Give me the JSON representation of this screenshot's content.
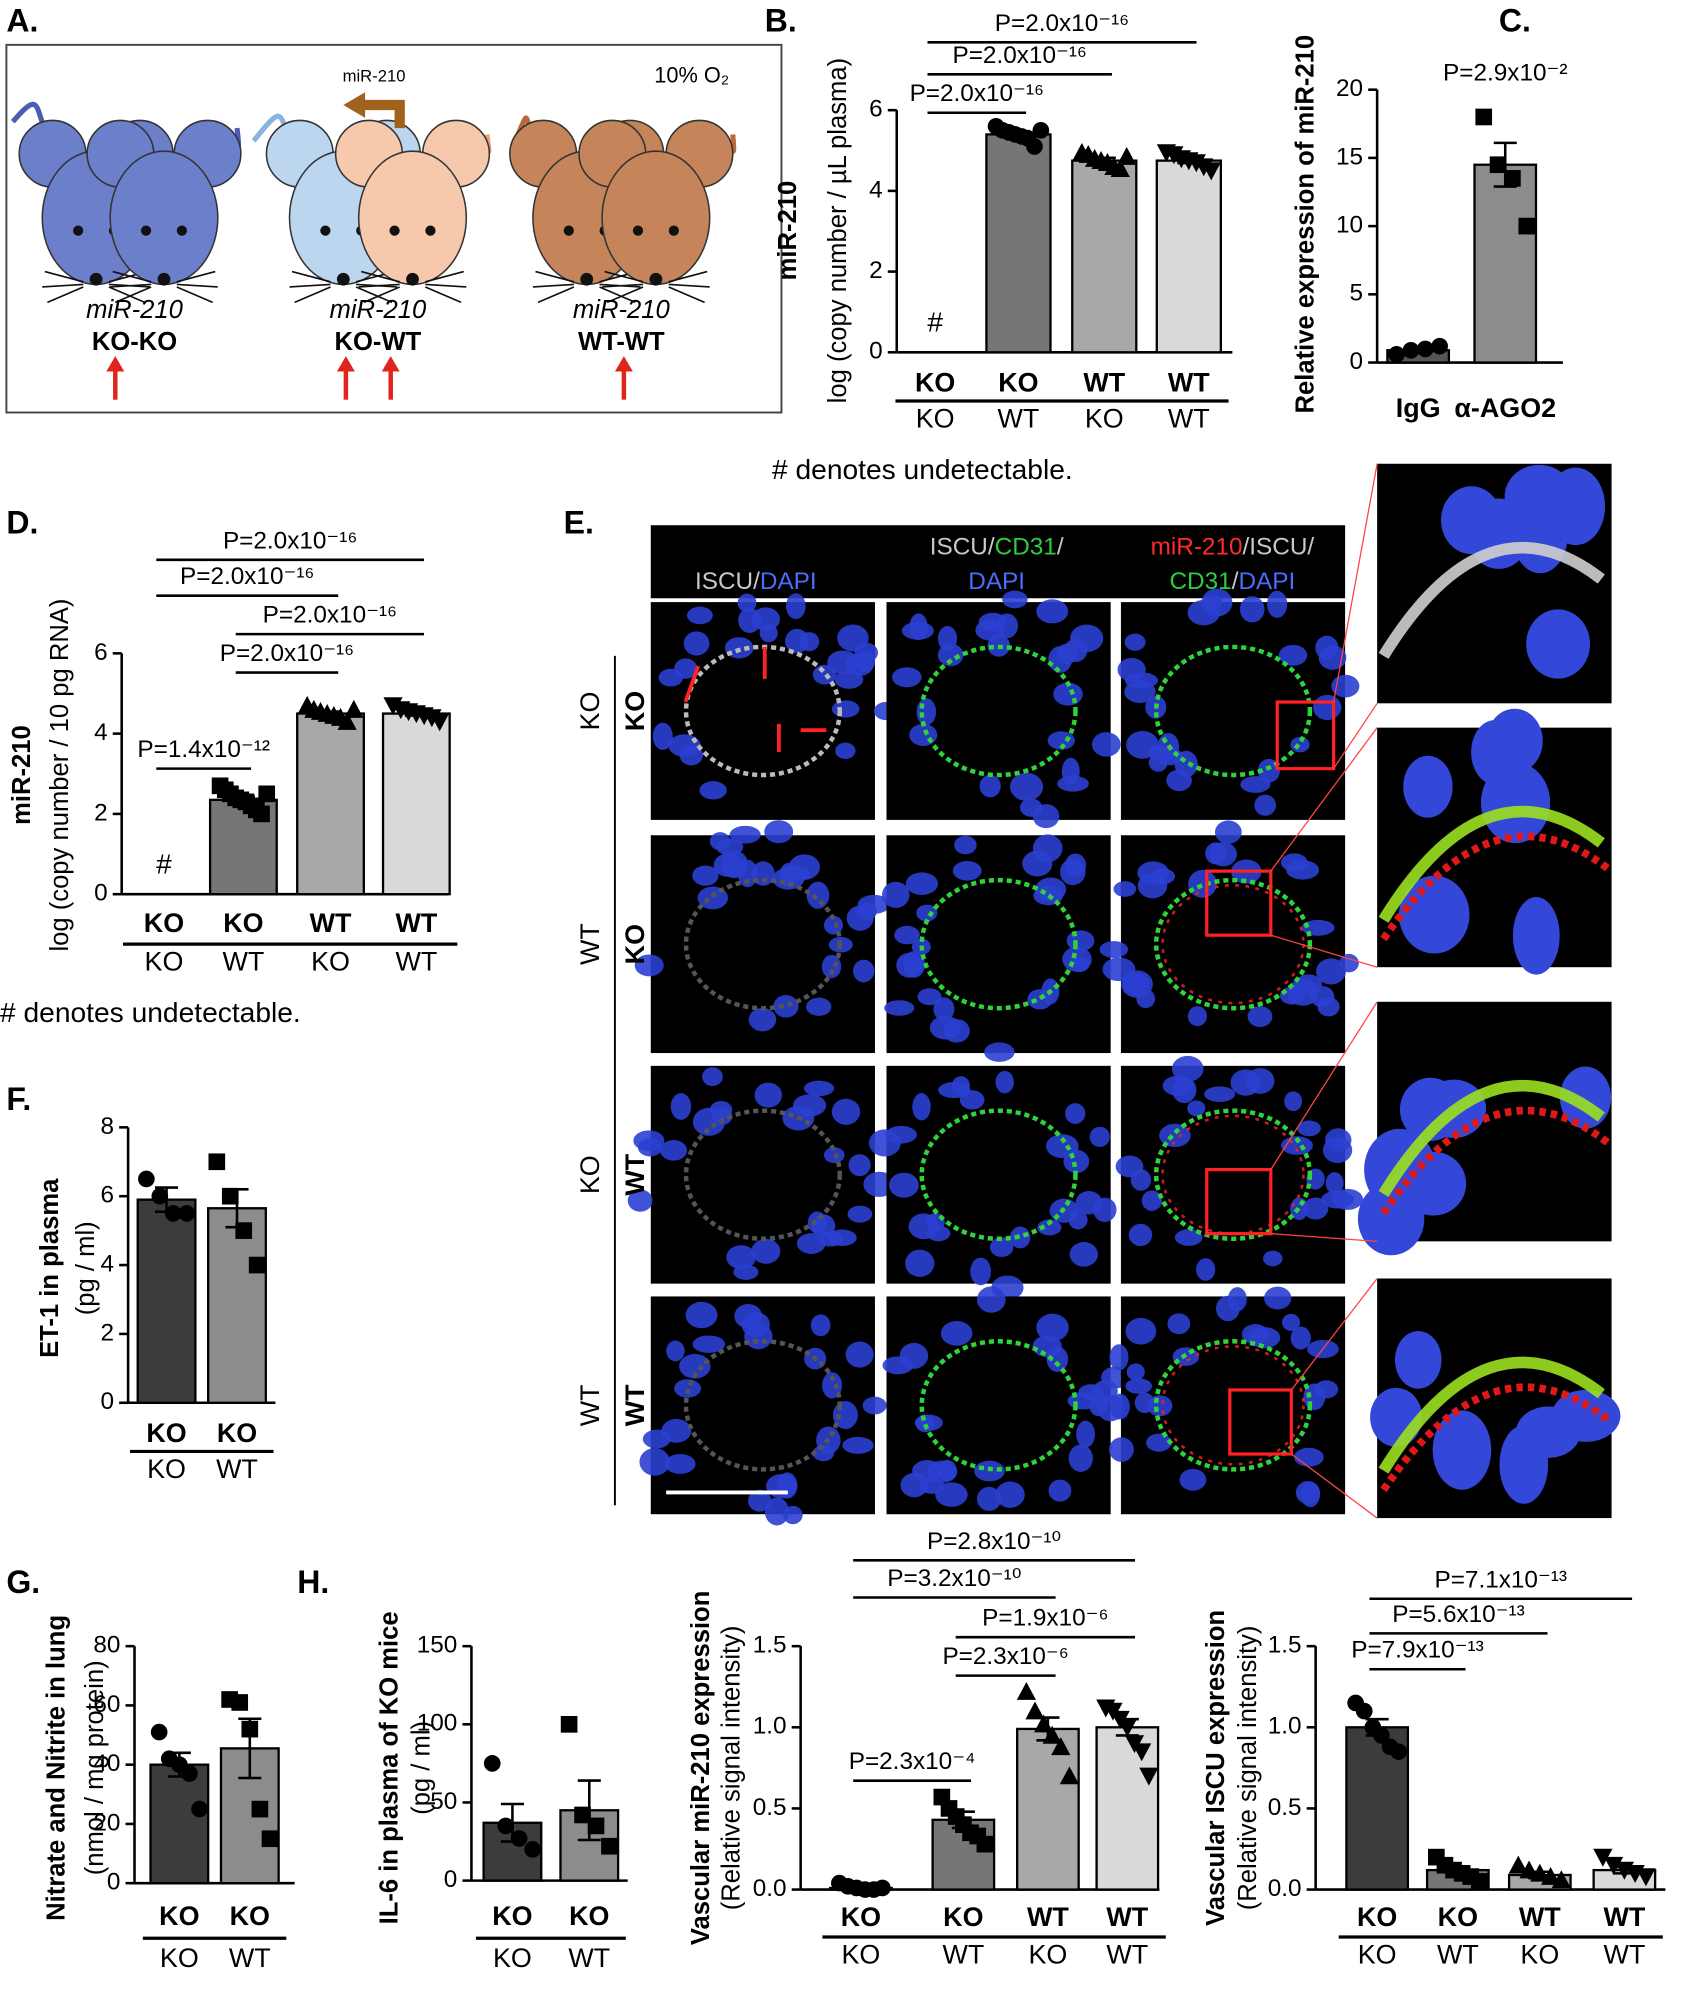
{
  "panel_letters": [
    "A.",
    "B.",
    "C.",
    "D.",
    "E.",
    "F.",
    "G.",
    "H."
  ],
  "diagram": {
    "arrow_label": "miR-210",
    "condition": "10% O₂",
    "groups": [
      {
        "gene": "miR-210",
        "genotype": "KO-KO"
      },
      {
        "gene": "miR-210",
        "genotype": "KO-WT"
      },
      {
        "gene": "miR-210",
        "genotype": "WT-WT"
      }
    ]
  },
  "micrograph": {
    "columns": [
      [
        [
          {
            "text": "ISCU/",
            "color": "#c8c8c8"
          },
          {
            "text": "DAPI",
            "color": "#4a6cff"
          }
        ]
      ],
      [
        [
          {
            "text": "ISCU/",
            "color": "#c8c8c8"
          },
          {
            "text": "CD31",
            "color": "#2ecc40"
          },
          {
            "text": "/",
            "color": "#c8c8c8"
          }
        ],
        [
          {
            "text": "DAPI",
            "color": "#4a6cff"
          }
        ]
      ],
      [
        [
          {
            "text": "miR-210",
            "color": "#ff2a2a"
          },
          {
            "text": "/ISCU/",
            "color": "#c8c8c8"
          }
        ],
        [
          {
            "text": "CD31",
            "color": "#2ecc40"
          },
          {
            "text": "/",
            "color": "#c8c8c8"
          },
          {
            "text": "DAPI",
            "color": "#4a6cff"
          }
        ]
      ]
    ],
    "rows": [
      {
        "host": "KO",
        "donor": "KO"
      },
      {
        "host": "WT",
        "donor": "KO"
      },
      {
        "host": "KO",
        "donor": "WT"
      },
      {
        "host": "WT",
        "donor": "WT"
      }
    ]
  },
  "chart_data": [
    {
      "type": "bar",
      "ylabel": "miR-210",
      "ysublabel": "log (copy number / µL plasma)",
      "categories": [
        "KO",
        "KO",
        "WT",
        "WT"
      ],
      "subcategories": [
        "KO",
        "WT",
        "KO",
        "WT"
      ],
      "values": [
        null,
        5.4,
        4.75,
        4.75
      ],
      "errors": [
        null,
        0.08,
        0.07,
        0.06
      ],
      "na_label": "#",
      "points": [
        [],
        [
          5.6,
          5.5,
          5.45,
          5.4,
          5.35,
          5.3,
          5.1,
          5.5
        ],
        [
          4.95,
          4.9,
          4.8,
          4.75,
          4.7,
          4.6,
          4.55,
          4.85
        ],
        [
          4.95,
          4.9,
          4.8,
          4.75,
          4.7,
          4.6,
          4.5
        ]
      ],
      "markers": [
        "circle",
        "circle",
        "triangle",
        "triangle-down"
      ],
      "colors": [
        "#000000",
        "#767676",
        "#a8a8a8",
        "#d9d9d9"
      ],
      "ylim": [
        0,
        6
      ],
      "yticks": [
        0,
        2,
        4,
        6
      ],
      "comparisons": [
        {
          "label": "P=2.0x10⁻¹⁶",
          "from": 0,
          "to": 3
        },
        {
          "label": "P=2.0x10⁻¹⁶",
          "from": 0,
          "to": 2
        },
        {
          "label": "P=2.0x10⁻¹⁶",
          "from": 0,
          "to": 1
        }
      ],
      "footnote": "# denotes undetectable."
    },
    {
      "type": "bar",
      "ylabel": "Relative expression of miR-210",
      "categories": [
        "IgG",
        "α-AGO2"
      ],
      "values": [
        0.9,
        14.5
      ],
      "errors": [
        0.15,
        1.6
      ],
      "points": [
        [
          0.6,
          0.9,
          1.0,
          1.2
        ],
        [
          18,
          14.5,
          13.5,
          10
        ]
      ],
      "markers": [
        "circle",
        "square"
      ],
      "colors": [
        "#555555",
        "#8c8c8c"
      ],
      "ylim": [
        0,
        20
      ],
      "yticks": [
        0,
        5,
        10,
        15,
        20
      ],
      "annotation": "P=2.9x10⁻²"
    },
    {
      "type": "bar",
      "ylabel": "miR-210",
      "ysublabel": "log (copy number / 10 pg RNA)",
      "categories": [
        "KO",
        "KO",
        "WT",
        "WT"
      ],
      "subcategories": [
        "KO",
        "WT",
        "KO",
        "WT"
      ],
      "values": [
        null,
        2.35,
        4.5,
        4.5
      ],
      "errors": [
        null,
        0.08,
        0.05,
        0.05
      ],
      "na_label": "#",
      "points": [
        [],
        [
          2.7,
          2.6,
          2.5,
          2.4,
          2.35,
          2.3,
          2.2,
          2.1,
          2.0,
          2.5
        ],
        [
          4.7,
          4.6,
          4.55,
          4.5,
          4.45,
          4.4,
          4.3,
          4.6
        ],
        [
          4.7,
          4.6,
          4.55,
          4.5,
          4.45,
          4.4,
          4.3
        ]
      ],
      "markers": [
        "circle",
        "square",
        "triangle",
        "triangle-down"
      ],
      "colors": [
        "#000000",
        "#767676",
        "#a8a8a8",
        "#d9d9d9"
      ],
      "ylim": [
        0,
        6
      ],
      "yticks": [
        0,
        2,
        4,
        6
      ],
      "comparisons": [
        {
          "label": "P=2.0x10⁻¹⁶",
          "from": 0,
          "to": 3
        },
        {
          "label": "P=2.0x10⁻¹⁶",
          "from": 0,
          "to": 2
        },
        {
          "label": "P=2.0x10⁻¹⁶",
          "from": 1,
          "to": 3
        },
        {
          "label": "P=2.0x10⁻¹⁶",
          "from": 1,
          "to": 2
        },
        {
          "label": "P=1.4x10⁻¹²",
          "from": 0,
          "to": 1
        }
      ],
      "footnote": "# denotes undetectable."
    },
    {
      "type": "bar",
      "ylabel": "ET-1 in plasma",
      "ysublabel": "(pg / ml)",
      "categories": [
        "KO",
        "KO"
      ],
      "subcategories": [
        "KO",
        "WT"
      ],
      "values": [
        5.9,
        5.65
      ],
      "errors": [
        0.35,
        0.55
      ],
      "points": [
        [
          6.5,
          6.0,
          5.5,
          5.5
        ],
        [
          7.0,
          6.0,
          5.0,
          4.0
        ]
      ],
      "markers": [
        "circle",
        "square"
      ],
      "colors": [
        "#3c3c3c",
        "#8c8c8c"
      ],
      "ylim": [
        0,
        8
      ],
      "yticks": [
        0,
        2,
        4,
        6,
        8
      ]
    },
    {
      "type": "bar",
      "ylabel": "Nitrate and Nitrite in lung",
      "ysublabel": "(nmol / mg protein)",
      "categories": [
        "KO",
        "KO"
      ],
      "subcategories": [
        "KO",
        "WT"
      ],
      "values": [
        40,
        45.5
      ],
      "errors": [
        4,
        10
      ],
      "points": [
        [
          51,
          42,
          40,
          37,
          25
        ],
        [
          62,
          61,
          52,
          25,
          15
        ]
      ],
      "markers": [
        "circle",
        "square"
      ],
      "colors": [
        "#3c3c3c",
        "#8c8c8c"
      ],
      "ylim": [
        0,
        80
      ],
      "yticks": [
        0,
        20,
        40,
        60,
        80
      ]
    },
    {
      "type": "bar",
      "ylabel": "IL-6 in plasma of KO mice",
      "ysublabel": "(pg / ml)",
      "categories": [
        "KO",
        "KO"
      ],
      "subcategories": [
        "KO",
        "WT"
      ],
      "values": [
        37,
        45
      ],
      "errors": [
        12,
        19
      ],
      "points": [
        [
          75,
          35,
          27,
          20
        ],
        [
          100,
          42,
          35,
          22
        ]
      ],
      "markers": [
        "circle",
        "square"
      ],
      "colors": [
        "#3c3c3c",
        "#8c8c8c"
      ],
      "ylim": [
        0,
        150
      ],
      "yticks": [
        0,
        50,
        100,
        150
      ]
    },
    {
      "type": "bar",
      "ylabel": "Vascular miR-210 expression",
      "ysublabel": "(Relative signal intensity)",
      "categories": [
        "KO",
        "KO",
        "WT",
        "WT"
      ],
      "subcategories": [
        "KO",
        "WT",
        "KO",
        "WT"
      ],
      "values": [
        0.01,
        0.43,
        0.99,
        1.0
      ],
      "errors": [
        0.01,
        0.05,
        0.07,
        0.05
      ],
      "points": [
        [
          0.04,
          0.02,
          0.01,
          0.0,
          0.0,
          0.01
        ],
        [
          0.57,
          0.5,
          0.45,
          0.4,
          0.35,
          0.33,
          0.28
        ],
        [
          1.22,
          1.1,
          1.02,
          0.95,
          0.88,
          0.7
        ],
        [
          1.12,
          1.1,
          1.05,
          1.0,
          0.9,
          0.85,
          0.7
        ]
      ],
      "markers": [
        "circle",
        "square",
        "triangle",
        "triangle-down"
      ],
      "colors": [
        "#3c3c3c",
        "#767676",
        "#a8a8a8",
        "#d9d9d9"
      ],
      "ylim": [
        0,
        1.5
      ],
      "yticks": [
        {
          "value": 0,
          "label": "0.0"
        },
        0.5,
        {
          "value": 1,
          "label": "1.0"
        },
        1.5
      ],
      "comparisons": [
        {
          "label": "P=2.8x10⁻¹⁰",
          "from": 0,
          "to": 3
        },
        {
          "label": "P=3.2x10⁻¹⁰",
          "from": 0,
          "to": 2
        },
        {
          "label": "P=1.9x10⁻⁶",
          "from": 1,
          "to": 3
        },
        {
          "label": "P=2.3x10⁻⁶",
          "from": 1,
          "to": 2
        },
        {
          "label": "P=2.3x10⁻⁴",
          "from": 0,
          "to": 1
        }
      ]
    },
    {
      "type": "bar",
      "ylabel": "Vascular ISCU expression",
      "ysublabel": "(Relative signal intensity)",
      "categories": [
        "KO",
        "KO",
        "WT",
        "WT"
      ],
      "subcategories": [
        "KO",
        "WT",
        "KO",
        "WT"
      ],
      "values": [
        1.0,
        0.12,
        0.09,
        0.12
      ],
      "errors": [
        0.05,
        0.02,
        0.02,
        0.02
      ],
      "points": [
        [
          1.15,
          1.1,
          1.0,
          0.95,
          0.88,
          0.85
        ],
        [
          0.2,
          0.15,
          0.12,
          0.1,
          0.08,
          0.05
        ],
        [
          0.15,
          0.12,
          0.1,
          0.08,
          0.06
        ],
        [
          0.2,
          0.15,
          0.12,
          0.1,
          0.08
        ]
      ],
      "markers": [
        "circle",
        "square",
        "triangle",
        "triangle-down"
      ],
      "colors": [
        "#3c3c3c",
        "#767676",
        "#a8a8a8",
        "#d9d9d9"
      ],
      "ylim": [
        0,
        1.5
      ],
      "yticks": [
        {
          "value": 0,
          "label": "0.0"
        },
        0.5,
        {
          "value": 1,
          "label": "1.0"
        },
        1.5
      ],
      "comparisons": [
        {
          "label": "P=7.1x10⁻¹³",
          "from": 0,
          "to": 3
        },
        {
          "label": "P=5.6x10⁻¹³",
          "from": 0,
          "to": 2
        },
        {
          "label": "P=7.9x10⁻¹³",
          "from": 0,
          "to": 1
        }
      ]
    }
  ]
}
